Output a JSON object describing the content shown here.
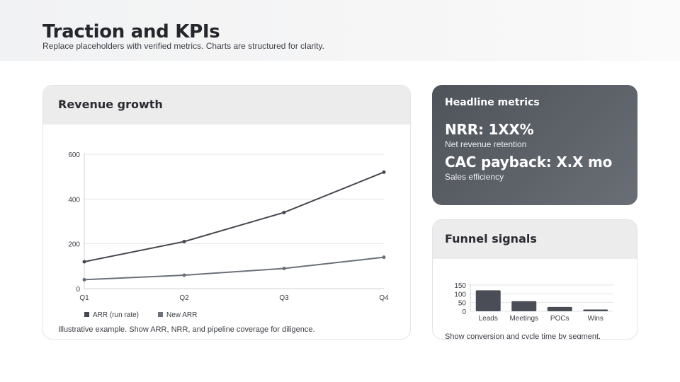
{
  "header": {
    "title": "Traction and KPIs",
    "subtitle": "Replace placeholders with verified metrics. Charts are structured for clarity."
  },
  "revenue_card": {
    "title": "Revenue growth",
    "note": "Illustrative example. Show ARR, NRR, and pipeline coverage for diligence."
  },
  "metrics_card": {
    "title": "Headline metrics",
    "metrics": [
      {
        "value": "NRR: 1XX%",
        "label": "Net revenue retention"
      },
      {
        "value": "CAC payback: X.X mo",
        "label": "Sales efficiency"
      }
    ]
  },
  "funnel_card": {
    "title": "Funnel signals",
    "note": "Show conversion and cycle time by segment."
  },
  "colors": {
    "series_primary": "#45484f",
    "series_secondary": "#6b7079",
    "bar": "#4a4d55",
    "grid": "#e3e4e7"
  },
  "chart_data": [
    {
      "type": "line",
      "title": "Revenue growth",
      "categories": [
        "Q1",
        "Q2",
        "Q3",
        "Q4"
      ],
      "series": [
        {
          "name": "ARR (run rate)",
          "values": [
            120,
            210,
            340,
            520
          ]
        },
        {
          "name": "New ARR",
          "values": [
            40,
            60,
            90,
            140
          ]
        }
      ],
      "yticks": [
        0,
        200,
        400,
        600
      ],
      "ylim": [
        0,
        600
      ],
      "grid": true,
      "legend": "bottom-left"
    },
    {
      "type": "bar",
      "title": "Funnel signals",
      "categories": [
        "Leads",
        "Meetings",
        "POCs",
        "Wins"
      ],
      "values": [
        120,
        58,
        25,
        10
      ],
      "yticks": [
        0,
        50,
        100,
        150
      ],
      "ylim": [
        0,
        150
      ],
      "grid": true
    }
  ]
}
